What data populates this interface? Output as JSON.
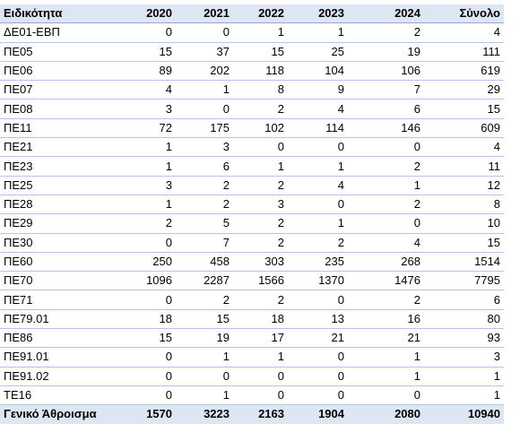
{
  "table": {
    "headers": [
      "Ειδικότητα",
      "2020",
      "2021",
      "2022",
      "2023",
      "2024",
      "Σύνολο"
    ],
    "rows": [
      [
        "ΔΕ01-ΕΒΠ",
        "0",
        "0",
        "1",
        "1",
        "2",
        "4"
      ],
      [
        "ΠΕ05",
        "15",
        "37",
        "15",
        "25",
        "19",
        "111"
      ],
      [
        "ΠΕ06",
        "89",
        "202",
        "118",
        "104",
        "106",
        "619"
      ],
      [
        "ΠΕ07",
        "4",
        "1",
        "8",
        "9",
        "7",
        "29"
      ],
      [
        "ΠΕ08",
        "3",
        "0",
        "2",
        "4",
        "6",
        "15"
      ],
      [
        "ΠΕ11",
        "72",
        "175",
        "102",
        "114",
        "146",
        "609"
      ],
      [
        "ΠΕ21",
        "1",
        "3",
        "0",
        "0",
        "0",
        "4"
      ],
      [
        "ΠΕ23",
        "1",
        "6",
        "1",
        "1",
        "2",
        "11"
      ],
      [
        "ΠΕ25",
        "3",
        "2",
        "2",
        "4",
        "1",
        "12"
      ],
      [
        "ΠΕ28",
        "1",
        "2",
        "3",
        "0",
        "2",
        "8"
      ],
      [
        "ΠΕ29",
        "2",
        "5",
        "2",
        "1",
        "0",
        "10"
      ],
      [
        "ΠΕ30",
        "0",
        "7",
        "2",
        "2",
        "4",
        "15"
      ],
      [
        "ΠΕ60",
        "250",
        "458",
        "303",
        "235",
        "268",
        "1514"
      ],
      [
        "ΠΕ70",
        "1096",
        "2287",
        "1566",
        "1370",
        "1476",
        "7795"
      ],
      [
        "ΠΕ71",
        "0",
        "2",
        "2",
        "0",
        "2",
        "6"
      ],
      [
        "ΠΕ79.01",
        "18",
        "15",
        "18",
        "13",
        "16",
        "80"
      ],
      [
        "ΠΕ86",
        "15",
        "19",
        "17",
        "21",
        "21",
        "93"
      ],
      [
        "ΠΕ91.01",
        "0",
        "1",
        "1",
        "0",
        "1",
        "3"
      ],
      [
        "ΠΕ91.02",
        "0",
        "0",
        "0",
        "0",
        "1",
        "1"
      ],
      [
        "ΤΕ16",
        "0",
        "1",
        "0",
        "0",
        "0",
        "1"
      ]
    ],
    "total": [
      "Γενικό Άθροισμα",
      "1570",
      "3223",
      "2163",
      "1904",
      "2080",
      "10940"
    ]
  },
  "colors": {
    "header_bg": "#dde6f3",
    "row_border": "#b4c6e7",
    "header_border": "#8ea9d9"
  }
}
